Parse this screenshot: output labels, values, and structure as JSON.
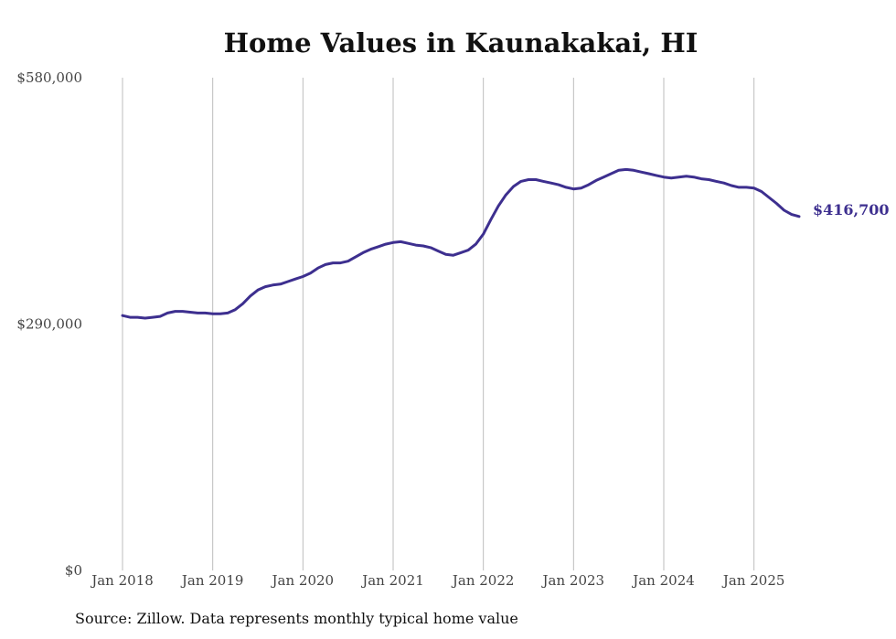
{
  "chart_data": {
    "type": "line",
    "title": "Home Values in Kaunakakai, HI",
    "source": "Source: Zillow. Data represents monthly typical home value",
    "xlabel": "",
    "ylabel": "",
    "ylim": [
      0,
      580000
    ],
    "y_ticks": [
      0,
      290000,
      580000
    ],
    "y_tick_labels": [
      "$0",
      "$290,000",
      "$580,000"
    ],
    "x_ticks": [
      "2018-01",
      "2019-01",
      "2020-01",
      "2021-01",
      "2022-01",
      "2023-01",
      "2024-01",
      "2025-01"
    ],
    "x_tick_labels": [
      "Jan 2018",
      "Jan 2019",
      "Jan 2020",
      "Jan 2021",
      "Jan 2022",
      "Jan 2023",
      "Jan 2024",
      "Jan 2025"
    ],
    "grid": "vertical",
    "line_color": "#3d2f8f",
    "end_label": "$416,700",
    "series": [
      {
        "x": [
          "2018-01",
          "2018-02",
          "2018-03",
          "2018-04",
          "2018-05",
          "2018-06",
          "2018-07",
          "2018-08",
          "2018-09",
          "2018-10",
          "2018-11",
          "2018-12",
          "2019-01",
          "2019-02",
          "2019-03",
          "2019-04",
          "2019-05",
          "2019-06",
          "2019-07",
          "2019-08",
          "2019-09",
          "2019-10",
          "2019-11",
          "2019-12",
          "2020-01",
          "2020-02",
          "2020-03",
          "2020-04",
          "2020-05",
          "2020-06",
          "2020-07",
          "2020-08",
          "2020-09",
          "2020-10",
          "2020-11",
          "2020-12",
          "2021-01",
          "2021-02",
          "2021-03",
          "2021-04",
          "2021-05",
          "2021-06",
          "2021-07",
          "2021-08",
          "2021-09",
          "2021-10",
          "2021-11",
          "2021-12",
          "2022-01",
          "2022-02",
          "2022-03",
          "2022-04",
          "2022-05",
          "2022-06",
          "2022-07",
          "2022-08",
          "2022-09",
          "2022-10",
          "2022-11",
          "2022-12",
          "2023-01",
          "2023-02",
          "2023-03",
          "2023-04",
          "2023-05",
          "2023-06",
          "2023-07",
          "2023-08",
          "2023-09",
          "2023-10",
          "2023-11",
          "2023-12",
          "2024-01",
          "2024-02",
          "2024-03",
          "2024-04",
          "2024-05",
          "2024-06",
          "2024-07",
          "2024-08",
          "2024-09",
          "2024-10",
          "2024-11",
          "2024-12",
          "2025-01",
          "2025-02",
          "2025-03",
          "2025-04",
          "2025-05",
          "2025-06",
          "2025-07"
        ],
        "values": [
          300000,
          298000,
          298000,
          297000,
          298000,
          299000,
          303000,
          305000,
          305000,
          304000,
          303000,
          303000,
          302000,
          302000,
          303000,
          307000,
          314000,
          323000,
          330000,
          334000,
          336000,
          337000,
          340000,
          343000,
          346000,
          350000,
          356000,
          360000,
          362000,
          362000,
          364000,
          369000,
          374000,
          378000,
          381000,
          384000,
          386000,
          387000,
          385000,
          383000,
          382000,
          380000,
          376000,
          372000,
          371000,
          374000,
          377000,
          384000,
          396000,
          413000,
          429000,
          442000,
          452000,
          458000,
          460000,
          460000,
          458000,
          456000,
          454000,
          451000,
          449000,
          450000,
          454000,
          459000,
          463000,
          467000,
          471000,
          472000,
          471000,
          469000,
          467000,
          465000,
          463000,
          462000,
          463000,
          464000,
          463000,
          461000,
          460000,
          458000,
          456000,
          453000,
          451000,
          451000,
          450000,
          446000,
          439000,
          432000,
          424000,
          419000,
          416700
        ]
      }
    ]
  }
}
